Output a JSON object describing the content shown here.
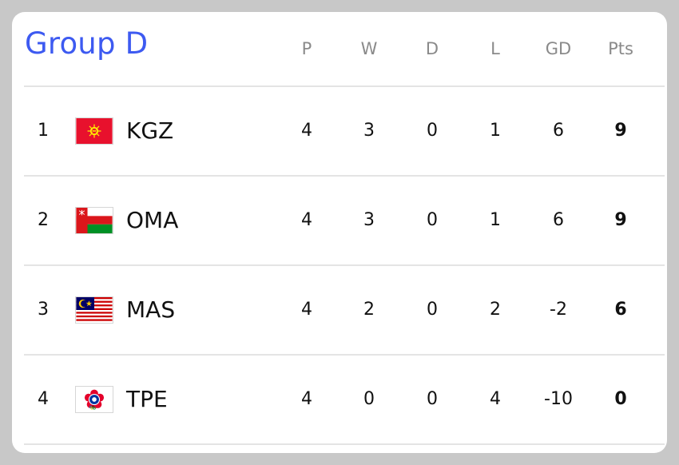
{
  "group_title": "Group D",
  "columns": [
    "P",
    "W",
    "D",
    "L",
    "GD",
    "Pts"
  ],
  "rows": [
    {
      "rank": "1",
      "flag_icon": "kyrgyzstan-flag-icon",
      "team": "KGZ",
      "p": "4",
      "w": "3",
      "d": "0",
      "l": "1",
      "gd": "6",
      "pts": "9"
    },
    {
      "rank": "2",
      "flag_icon": "oman-flag-icon",
      "team": "OMA",
      "p": "4",
      "w": "3",
      "d": "0",
      "l": "1",
      "gd": "6",
      "pts": "9"
    },
    {
      "rank": "3",
      "flag_icon": "malaysia-flag-icon",
      "team": "MAS",
      "p": "4",
      "w": "2",
      "d": "0",
      "l": "2",
      "gd": "-2",
      "pts": "6"
    },
    {
      "rank": "4",
      "flag_icon": "chinese-taipei-flag-icon",
      "team": "TPE",
      "p": "4",
      "w": "0",
      "d": "0",
      "l": "4",
      "gd": "-10",
      "pts": "0"
    }
  ],
  "colors": {
    "title": "#3d5af1",
    "header_text": "#8a8a8a",
    "background": "#c8c8c8",
    "card": "#ffffff",
    "divider": "#e4e4e4"
  }
}
